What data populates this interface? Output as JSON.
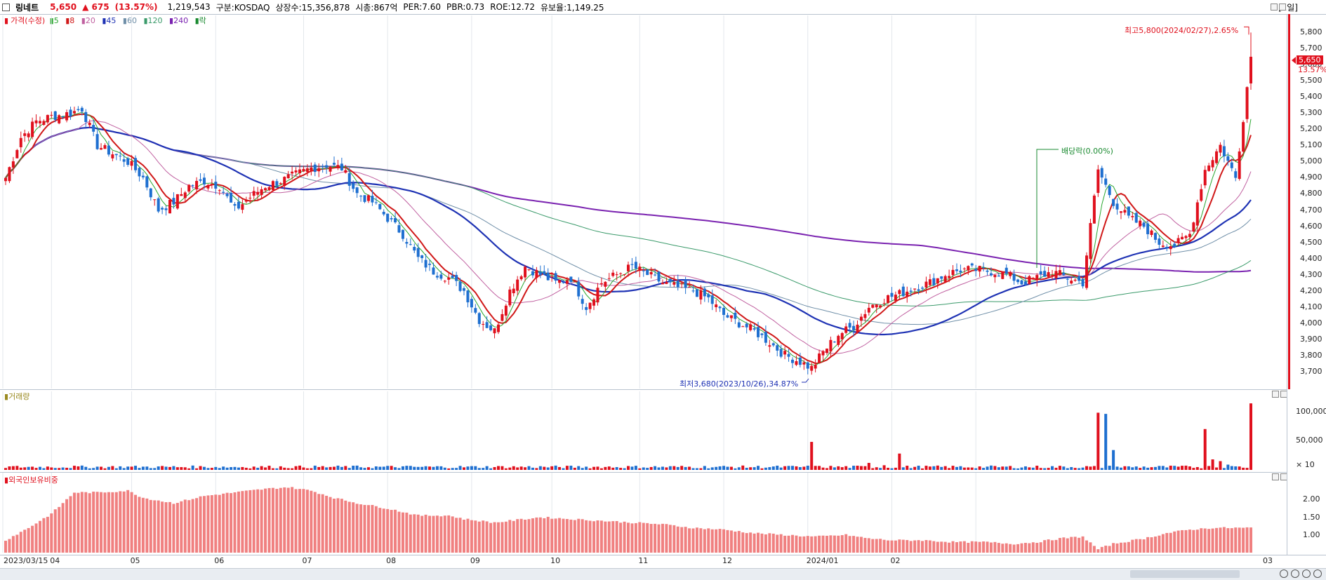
{
  "header": {
    "stock_name": "링네트",
    "price": "5,650",
    "change": "▲ 675",
    "change_pct": "(13.57%)",
    "volume": "1,219,543",
    "market": "구분:KOSDAQ",
    "shares": "상장수:15,356,878",
    "market_cap": "시총:867억",
    "per": "PER:7.60",
    "pbr": "PBR:0.73",
    "roe": "ROE:12.72",
    "float_ratio": "유보율:1,149.25",
    "period": "[1일]"
  },
  "legend": {
    "price_label": "가격(수정)",
    "ma": [
      "5",
      "8",
      "20",
      "45",
      "60",
      "120",
      "240"
    ],
    "ex_label": "락",
    "volume_label": "거래량",
    "foreign_label": "외국인보유비중"
  },
  "colors": {
    "up": "#e0101d",
    "down": "#1e6fd0",
    "ma5": "#2aa630",
    "ma8": "#d01818",
    "ma20": "#c060a0",
    "ma45": "#1e32b4",
    "ma60": "#6f8fa8",
    "ma120": "#3a9a6a",
    "ma240": "#7a22b0",
    "foreign_bar": "#f08080"
  },
  "annotations": {
    "high": "최고5,800(2024/02/27),2.65%",
    "low": "최저3,680(2023/10/26),34.87%",
    "dividend": "배당락(0.00%)",
    "current_price": "5,650",
    "current_pct": "13.57%"
  },
  "chart_data": [
    {
      "type": "candlestick",
      "title": "링네트",
      "x_labels": [
        "2023/03/15",
        "04",
        "05",
        "06",
        "07",
        "08",
        "09",
        "10",
        "11",
        "12",
        "2024/01",
        "02",
        "03"
      ],
      "y_ticks": [
        "5,800",
        "5,700",
        "5,600",
        "5,500",
        "5,400",
        "5,300",
        "5,200",
        "5,100",
        "5,000",
        "4,900",
        "4,800",
        "4,700",
        "4,600",
        "4,500",
        "4,400",
        "4,300",
        "4,200",
        "4,100",
        "4,000",
        "3,900",
        "3,800",
        "3,700"
      ],
      "ylim": [
        3620,
        5880
      ],
      "price_path": [
        {
          "d": 0,
          "c": 4900
        },
        {
          "d": 4,
          "c": 5150
        },
        {
          "d": 8,
          "c": 5250
        },
        {
          "d": 12,
          "c": 5280
        },
        {
          "d": 17,
          "c": 5300
        },
        {
          "d": 20,
          "c": 5330
        },
        {
          "d": 24,
          "c": 5100
        },
        {
          "d": 28,
          "c": 5050
        },
        {
          "d": 32,
          "c": 5000
        },
        {
          "d": 36,
          "c": 4900
        },
        {
          "d": 40,
          "c": 4700
        },
        {
          "d": 44,
          "c": 4750
        },
        {
          "d": 48,
          "c": 4850
        },
        {
          "d": 52,
          "c": 4880
        },
        {
          "d": 56,
          "c": 4850
        },
        {
          "d": 60,
          "c": 4700
        },
        {
          "d": 64,
          "c": 4780
        },
        {
          "d": 68,
          "c": 4850
        },
        {
          "d": 72,
          "c": 4880
        },
        {
          "d": 76,
          "c": 4920
        },
        {
          "d": 80,
          "c": 4960
        },
        {
          "d": 84,
          "c": 4980
        },
        {
          "d": 88,
          "c": 4960
        },
        {
          "d": 92,
          "c": 4800
        },
        {
          "d": 96,
          "c": 4750
        },
        {
          "d": 100,
          "c": 4650
        },
        {
          "d": 104,
          "c": 4550
        },
        {
          "d": 108,
          "c": 4400
        },
        {
          "d": 112,
          "c": 4320
        },
        {
          "d": 116,
          "c": 4280
        },
        {
          "d": 120,
          "c": 4200
        },
        {
          "d": 124,
          "c": 4020
        },
        {
          "d": 128,
          "c": 3950
        },
        {
          "d": 132,
          "c": 4200
        },
        {
          "d": 136,
          "c": 4350
        },
        {
          "d": 140,
          "c": 4300
        },
        {
          "d": 144,
          "c": 4250
        },
        {
          "d": 148,
          "c": 4280
        },
        {
          "d": 152,
          "c": 4100
        },
        {
          "d": 156,
          "c": 4250
        },
        {
          "d": 160,
          "c": 4300
        },
        {
          "d": 164,
          "c": 4350
        },
        {
          "d": 168,
          "c": 4300
        },
        {
          "d": 172,
          "c": 4250
        },
        {
          "d": 176,
          "c": 4220
        },
        {
          "d": 180,
          "c": 4200
        },
        {
          "d": 184,
          "c": 4150
        },
        {
          "d": 188,
          "c": 4050
        },
        {
          "d": 192,
          "c": 4000
        },
        {
          "d": 196,
          "c": 3950
        },
        {
          "d": 200,
          "c": 3880
        },
        {
          "d": 204,
          "c": 3800
        },
        {
          "d": 208,
          "c": 3760
        },
        {
          "d": 211,
          "c": 3720
        },
        {
          "d": 214,
          "c": 3820
        },
        {
          "d": 218,
          "c": 3930
        },
        {
          "d": 222,
          "c": 3980
        },
        {
          "d": 226,
          "c": 4100
        },
        {
          "d": 230,
          "c": 4150
        },
        {
          "d": 234,
          "c": 4180
        },
        {
          "d": 238,
          "c": 4220
        },
        {
          "d": 242,
          "c": 4250
        },
        {
          "d": 246,
          "c": 4300
        },
        {
          "d": 250,
          "c": 4330
        },
        {
          "d": 254,
          "c": 4330
        },
        {
          "d": 258,
          "c": 4320
        },
        {
          "d": 262,
          "c": 4300
        },
        {
          "d": 266,
          "c": 4250
        },
        {
          "d": 270,
          "c": 4280
        },
        {
          "d": 274,
          "c": 4320
        },
        {
          "d": 278,
          "c": 4280
        },
        {
          "d": 282,
          "c": 4250
        },
        {
          "d": 286,
          "c": 4950
        },
        {
          "d": 290,
          "c": 4750
        },
        {
          "d": 294,
          "c": 4650
        },
        {
          "d": 298,
          "c": 4600
        },
        {
          "d": 302,
          "c": 4500
        },
        {
          "d": 306,
          "c": 4480
        },
        {
          "d": 310,
          "c": 4550
        },
        {
          "d": 314,
          "c": 4950
        },
        {
          "d": 318,
          "c": 5100
        },
        {
          "d": 322,
          "c": 4900
        },
        {
          "d": 326,
          "c": 5650
        }
      ],
      "high": 5800,
      "low": 3680,
      "current": 5650
    },
    {
      "type": "bar",
      "title": "거래량",
      "y_ticks": [
        "100,000",
        "50,000",
        "× 10"
      ],
      "ylim": [
        0,
        125000
      ],
      "spikes": [
        {
          "d": 211,
          "v": 48000
        },
        {
          "d": 226,
          "v": 12000
        },
        {
          "d": 230,
          "v": 8000
        },
        {
          "d": 234,
          "v": 28000
        },
        {
          "d": 286,
          "v": 98000
        },
        {
          "d": 288,
          "v": 96000
        },
        {
          "d": 290,
          "v": 34000
        },
        {
          "d": 314,
          "v": 70000
        },
        {
          "d": 316,
          "v": 18000
        },
        {
          "d": 318,
          "v": 15000
        },
        {
          "d": 320,
          "v": 9000
        },
        {
          "d": 326,
          "v": 114000
        }
      ],
      "baseline": 5000
    },
    {
      "type": "bar",
      "title": "외국인보유비중",
      "y_ticks": [
        "2.00",
        "1.50",
        "1.00"
      ],
      "ylim": [
        0.5,
        2.6
      ],
      "path": [
        {
          "d": 0,
          "v": 0.85
        },
        {
          "d": 6,
          "v": 1.2
        },
        {
          "d": 12,
          "v": 1.6
        },
        {
          "d": 18,
          "v": 2.2
        },
        {
          "d": 24,
          "v": 2.2
        },
        {
          "d": 32,
          "v": 2.25
        },
        {
          "d": 36,
          "v": 2.05
        },
        {
          "d": 44,
          "v": 1.9
        },
        {
          "d": 52,
          "v": 2.1
        },
        {
          "d": 60,
          "v": 2.2
        },
        {
          "d": 68,
          "v": 2.3
        },
        {
          "d": 74,
          "v": 2.35
        },
        {
          "d": 80,
          "v": 2.25
        },
        {
          "d": 86,
          "v": 2.05
        },
        {
          "d": 92,
          "v": 1.9
        },
        {
          "d": 100,
          "v": 1.75
        },
        {
          "d": 108,
          "v": 1.55
        },
        {
          "d": 116,
          "v": 1.55
        },
        {
          "d": 120,
          "v": 1.45
        },
        {
          "d": 128,
          "v": 1.35
        },
        {
          "d": 136,
          "v": 1.45
        },
        {
          "d": 140,
          "v": 1.5
        },
        {
          "d": 148,
          "v": 1.45
        },
        {
          "d": 156,
          "v": 1.4
        },
        {
          "d": 164,
          "v": 1.35
        },
        {
          "d": 172,
          "v": 1.3
        },
        {
          "d": 180,
          "v": 1.2
        },
        {
          "d": 188,
          "v": 1.15
        },
        {
          "d": 196,
          "v": 1.05
        },
        {
          "d": 204,
          "v": 1.0
        },
        {
          "d": 212,
          "v": 0.95
        },
        {
          "d": 220,
          "v": 1.0
        },
        {
          "d": 226,
          "v": 0.9
        },
        {
          "d": 232,
          "v": 0.85
        },
        {
          "d": 240,
          "v": 0.85
        },
        {
          "d": 248,
          "v": 0.8
        },
        {
          "d": 256,
          "v": 0.8
        },
        {
          "d": 264,
          "v": 0.75
        },
        {
          "d": 270,
          "v": 0.8
        },
        {
          "d": 276,
          "v": 0.9
        },
        {
          "d": 282,
          "v": 0.95
        },
        {
          "d": 286,
          "v": 0.6
        },
        {
          "d": 290,
          "v": 0.75
        },
        {
          "d": 298,
          "v": 0.9
        },
        {
          "d": 304,
          "v": 1.05
        },
        {
          "d": 310,
          "v": 1.15
        },
        {
          "d": 316,
          "v": 1.2
        },
        {
          "d": 322,
          "v": 1.2
        },
        {
          "d": 326,
          "v": 1.2
        }
      ]
    }
  ]
}
